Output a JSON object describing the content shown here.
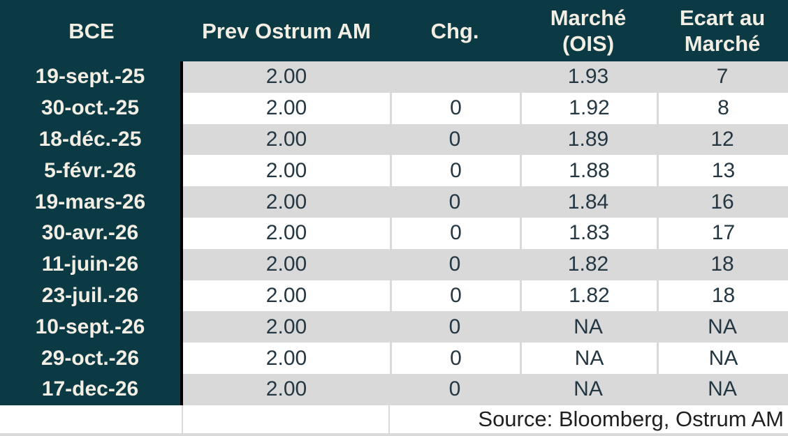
{
  "table": {
    "columns": [
      {
        "label": "BCE"
      },
      {
        "label": "Prev Ostrum AM"
      },
      {
        "label": "Chg."
      },
      {
        "label": "Marché (OIS)",
        "line1": "Marché",
        "line2": "(OIS)"
      },
      {
        "label": "Ecart au Marché",
        "line1": "Ecart au",
        "line2": "Marché"
      }
    ],
    "rows": [
      {
        "date": "19-sept.-25",
        "prev": "2.00",
        "chg": "",
        "market": "1.93",
        "ecart": "7"
      },
      {
        "date": "30-oct.-25",
        "prev": "2.00",
        "chg": "0",
        "market": "1.92",
        "ecart": "8"
      },
      {
        "date": "18-déc.-25",
        "prev": "2.00",
        "chg": "0",
        "market": "1.89",
        "ecart": "12"
      },
      {
        "date": "5-févr.-26",
        "prev": "2.00",
        "chg": "0",
        "market": "1.88",
        "ecart": "13"
      },
      {
        "date": "19-mars-26",
        "prev": "2.00",
        "chg": "0",
        "market": "1.84",
        "ecart": "16"
      },
      {
        "date": "30-avr.-26",
        "prev": "2.00",
        "chg": "0",
        "market": "1.83",
        "ecart": "17"
      },
      {
        "date": "11-juin-26",
        "prev": "2.00",
        "chg": "0",
        "market": "1.82",
        "ecart": "18"
      },
      {
        "date": "23-juil.-26",
        "prev": "2.00",
        "chg": "0",
        "market": "1.82",
        "ecart": "18"
      },
      {
        "date": "10-sept.-26",
        "prev": "2.00",
        "chg": "0",
        "market": "NA",
        "ecart": "NA"
      },
      {
        "date": "29-oct.-26",
        "prev": "2.00",
        "chg": "0",
        "market": "NA",
        "ecart": "NA"
      },
      {
        "date": "17-dec-26",
        "prev": "2.00",
        "chg": "0",
        "market": "NA",
        "ecart": "NA"
      }
    ],
    "source": "Source: Bloomberg, Ostrum AM"
  },
  "colors": {
    "teal": "#0c3a44",
    "header_text": "#f2eee4",
    "row_alt": "#d9d9d9",
    "row_white": "#ffffff",
    "dark_text": "#243742",
    "black_border": "#000000",
    "source_text": "#1f1f1f"
  }
}
